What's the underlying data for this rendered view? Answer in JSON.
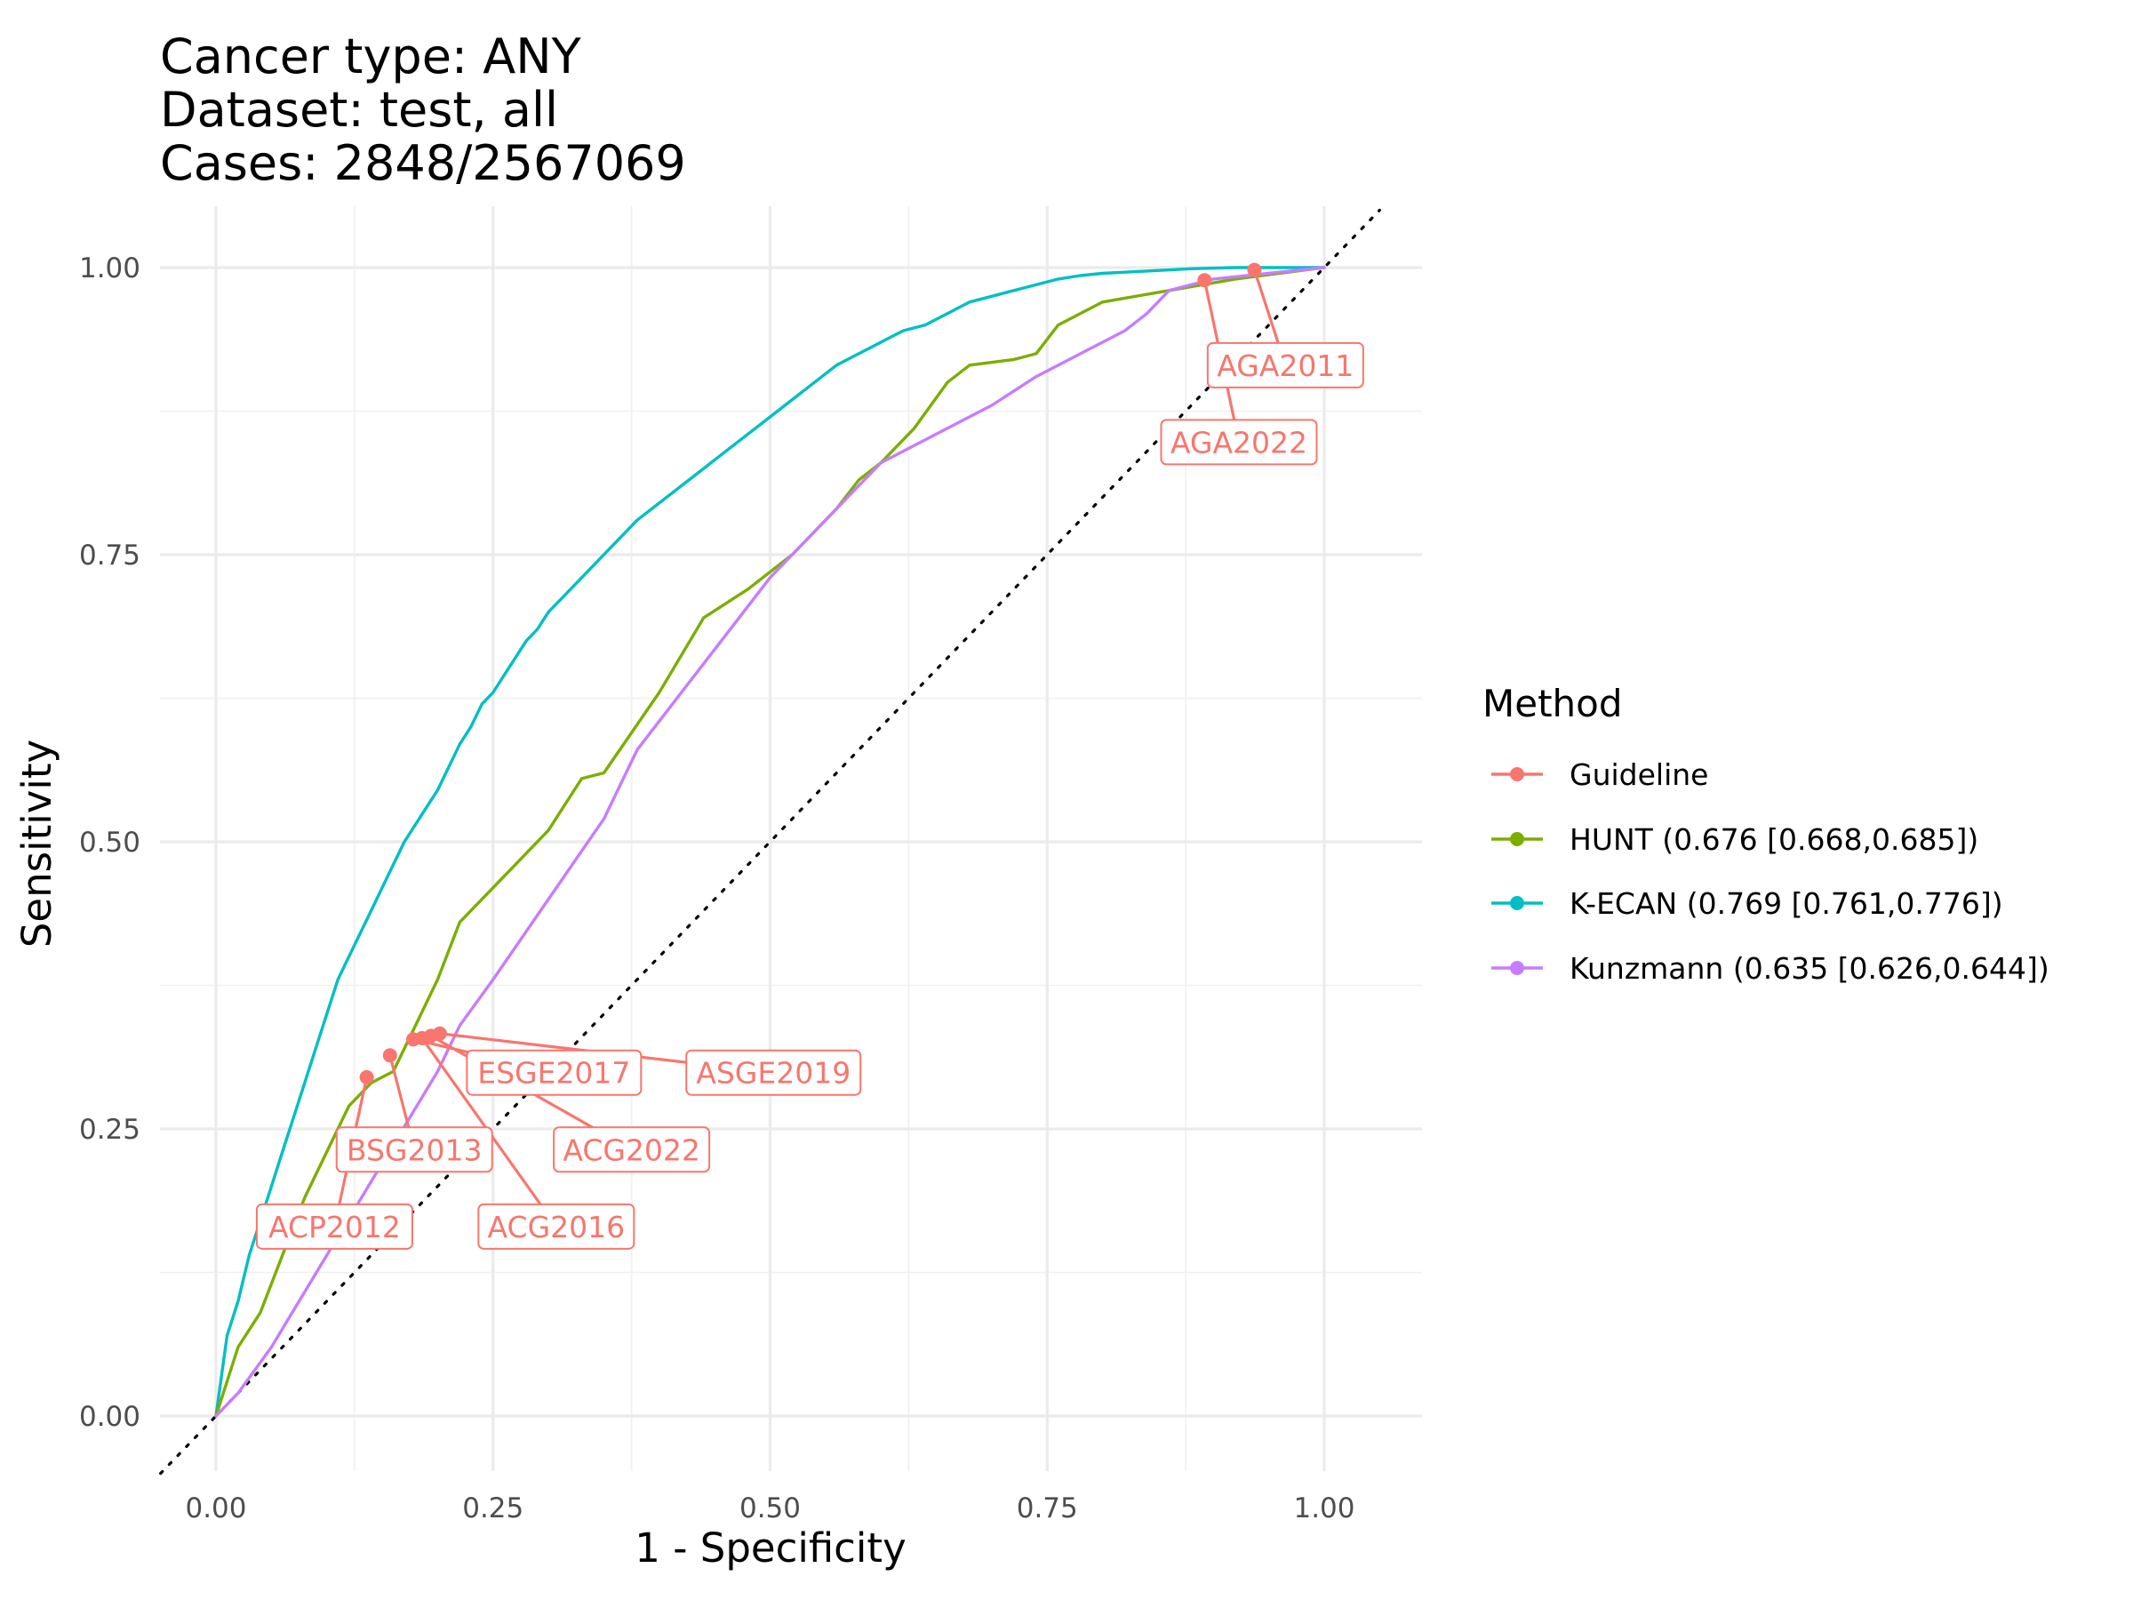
{
  "title_lines": [
    "Cancer type: ANY",
    "Dataset: test, all",
    "Cases: 2848/2567069"
  ],
  "chart_data": {
    "type": "line",
    "xlabel": "1 - Specificity",
    "ylabel": "Sensitivity",
    "xlim": [
      -0.05,
      1.05
    ],
    "ylim": [
      -0.05,
      1.05
    ],
    "x_ticks": [
      0,
      0.25,
      0.5,
      0.75,
      1
    ],
    "x_tick_labels": [
      "0.00",
      "0.25",
      "0.50",
      "0.75",
      "1.00"
    ],
    "y_ticks": [
      0,
      0.25,
      0.5,
      0.75,
      1
    ],
    "y_tick_labels": [
      "0.00",
      "0.25",
      "0.50",
      "0.75",
      "1.00"
    ],
    "grid": true,
    "diagonal_reference": true,
    "legend": {
      "title": "Method",
      "position": "right",
      "entries": [
        {
          "label": "Guideline",
          "color": "#F8766D"
        },
        {
          "label": "HUNT (0.676 [0.668,0.685])",
          "color": "#7CAE00"
        },
        {
          "label": "K-ECAN (0.769 [0.761,0.776])",
          "color": "#00BFC4"
        },
        {
          "label": "Kunzmann (0.635 [0.626,0.644])",
          "color": "#C77CFF"
        }
      ]
    },
    "series": [
      {
        "name": "K-ECAN (0.769 [0.761,0.776])",
        "color": "#00BFC4",
        "x": [
          0,
          0.01,
          0.02,
          0.03,
          0.04,
          0.05,
          0.06,
          0.07,
          0.08,
          0.09,
          0.1,
          0.11,
          0.12,
          0.13,
          0.14,
          0.15,
          0.16,
          0.17,
          0.18,
          0.19,
          0.2,
          0.21,
          0.22,
          0.23,
          0.24,
          0.25,
          0.26,
          0.27,
          0.28,
          0.29,
          0.3,
          0.32,
          0.34,
          0.36,
          0.38,
          0.4,
          0.42,
          0.44,
          0.46,
          0.48,
          0.5,
          0.52,
          0.54,
          0.56,
          0.58,
          0.6,
          0.62,
          0.64,
          0.66,
          0.68,
          0.7,
          0.72,
          0.74,
          0.76,
          0.78,
          0.8,
          0.84,
          0.88,
          0.92,
          0.96,
          1.0
        ],
        "y": [
          0,
          0.07,
          0.1,
          0.14,
          0.17,
          0.2,
          0.23,
          0.26,
          0.29,
          0.32,
          0.35,
          0.38,
          0.4,
          0.42,
          0.44,
          0.46,
          0.48,
          0.5,
          0.515,
          0.53,
          0.545,
          0.565,
          0.585,
          0.6,
          0.62,
          0.63,
          0.645,
          0.66,
          0.675,
          0.685,
          0.7,
          0.72,
          0.74,
          0.76,
          0.78,
          0.795,
          0.81,
          0.825,
          0.84,
          0.855,
          0.87,
          0.885,
          0.9,
          0.915,
          0.925,
          0.935,
          0.945,
          0.95,
          0.96,
          0.97,
          0.975,
          0.98,
          0.985,
          0.99,
          0.993,
          0.995,
          0.997,
          0.999,
          1.0,
          1.0,
          1.0
        ]
      },
      {
        "name": "HUNT (0.676 [0.668,0.685])",
        "color": "#7CAE00",
        "x": [
          0,
          0.02,
          0.04,
          0.06,
          0.08,
          0.1,
          0.12,
          0.14,
          0.16,
          0.18,
          0.2,
          0.22,
          0.25,
          0.28,
          0.3,
          0.33,
          0.35,
          0.4,
          0.44,
          0.48,
          0.52,
          0.56,
          0.58,
          0.6,
          0.63,
          0.66,
          0.68,
          0.72,
          0.74,
          0.76,
          0.8,
          0.86,
          0.92,
          1.0
        ],
        "y": [
          0,
          0.06,
          0.09,
          0.14,
          0.19,
          0.23,
          0.27,
          0.29,
          0.3,
          0.34,
          0.38,
          0.43,
          0.46,
          0.49,
          0.51,
          0.555,
          0.56,
          0.63,
          0.695,
          0.72,
          0.75,
          0.79,
          0.815,
          0.83,
          0.86,
          0.9,
          0.915,
          0.92,
          0.925,
          0.95,
          0.97,
          0.98,
          0.99,
          1.0
        ]
      },
      {
        "name": "Kunzmann (0.635 [0.626,0.644])",
        "color": "#C77CFF",
        "x": [
          0,
          0.02,
          0.05,
          0.1,
          0.15,
          0.2,
          0.22,
          0.25,
          0.3,
          0.35,
          0.38,
          0.42,
          0.46,
          0.5,
          0.52,
          0.56,
          0.6,
          0.65,
          0.7,
          0.74,
          0.78,
          0.82,
          0.84,
          0.86,
          0.9,
          0.95,
          1.0
        ],
        "y": [
          0,
          0.02,
          0.06,
          0.14,
          0.22,
          0.3,
          0.34,
          0.38,
          0.45,
          0.52,
          0.58,
          0.63,
          0.68,
          0.73,
          0.75,
          0.79,
          0.83,
          0.855,
          0.88,
          0.905,
          0.925,
          0.945,
          0.96,
          0.98,
          0.99,
          0.995,
          1.0
        ]
      }
    ],
    "guideline_points": [
      {
        "label": "AGA2011",
        "x": 0.937,
        "y": 0.998
      },
      {
        "label": "AGA2022",
        "x": 0.892,
        "y": 0.989
      },
      {
        "label": "ASGE2019",
        "x": 0.202,
        "y": 0.333
      },
      {
        "label": "ESGE2017",
        "x": 0.178,
        "y": 0.328
      },
      {
        "label": "ACG2022",
        "x": 0.194,
        "y": 0.331
      },
      {
        "label": "ACG2016",
        "x": 0.186,
        "y": 0.329
      },
      {
        "label": "BSG2013",
        "x": 0.157,
        "y": 0.314
      },
      {
        "label": "ACP2012",
        "x": 0.136,
        "y": 0.295
      }
    ],
    "guideline_label_positions": [
      {
        "label": "AGA2011",
        "x": 0.965,
        "y": 0.915
      },
      {
        "label": "AGA2022",
        "x": 0.923,
        "y": 0.848
      },
      {
        "label": "ASGE2019",
        "x": 0.503,
        "y": 0.299
      },
      {
        "label": "ESGE2017",
        "x": 0.305,
        "y": 0.299
      },
      {
        "label": "ACG2022",
        "x": 0.375,
        "y": 0.232
      },
      {
        "label": "ACG2016",
        "x": 0.307,
        "y": 0.165
      },
      {
        "label": "BSG2013",
        "x": 0.179,
        "y": 0.232
      },
      {
        "label": "ACP2012",
        "x": 0.107,
        "y": 0.165
      }
    ]
  }
}
